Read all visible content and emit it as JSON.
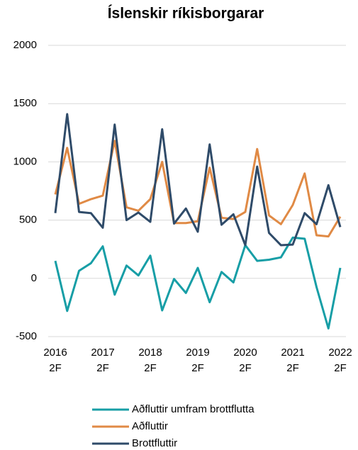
{
  "chart_data": {
    "type": "line",
    "title": "Íslenskir ríkisborgarar",
    "categories": [
      "2016\n2F",
      null,
      null,
      null,
      "2017\n2F",
      null,
      null,
      null,
      "2018\n2F",
      null,
      null,
      null,
      "2019\n2F",
      null,
      null,
      null,
      "2020\n2F",
      null,
      null,
      null,
      "2021\n2F",
      null,
      null,
      null,
      "2022\n2F"
    ],
    "series": [
      {
        "name": "Aðfluttir umfram brottflutta",
        "color": "#179ea6",
        "values": [
          150,
          -280,
          65,
          130,
          275,
          -140,
          110,
          25,
          195,
          -275,
          -5,
          -125,
          90,
          -205,
          55,
          -35,
          285,
          150,
          160,
          180,
          350,
          340,
          -75,
          -430,
          90
        ]
      },
      {
        "name": "Aðfluttir",
        "color": "#e08a45",
        "values": [
          720,
          1120,
          640,
          680,
          710,
          1180,
          610,
          580,
          680,
          1000,
          475,
          475,
          490,
          950,
          520,
          510,
          570,
          1110,
          540,
          465,
          630,
          900,
          370,
          360,
          530
        ]
      },
      {
        "name": "Brottfluttir",
        "color": "#2f4b69",
        "values": [
          560,
          1410,
          570,
          560,
          435,
          1320,
          500,
          565,
          485,
          1280,
          470,
          600,
          400,
          1150,
          460,
          550,
          285,
          960,
          390,
          285,
          290,
          560,
          465,
          800,
          440
        ]
      }
    ],
    "ylim": [
      -500,
      2000
    ],
    "yticks": [
      -500,
      0,
      500,
      1000,
      1500,
      2000
    ],
    "grid": true,
    "legend": "bottom"
  }
}
